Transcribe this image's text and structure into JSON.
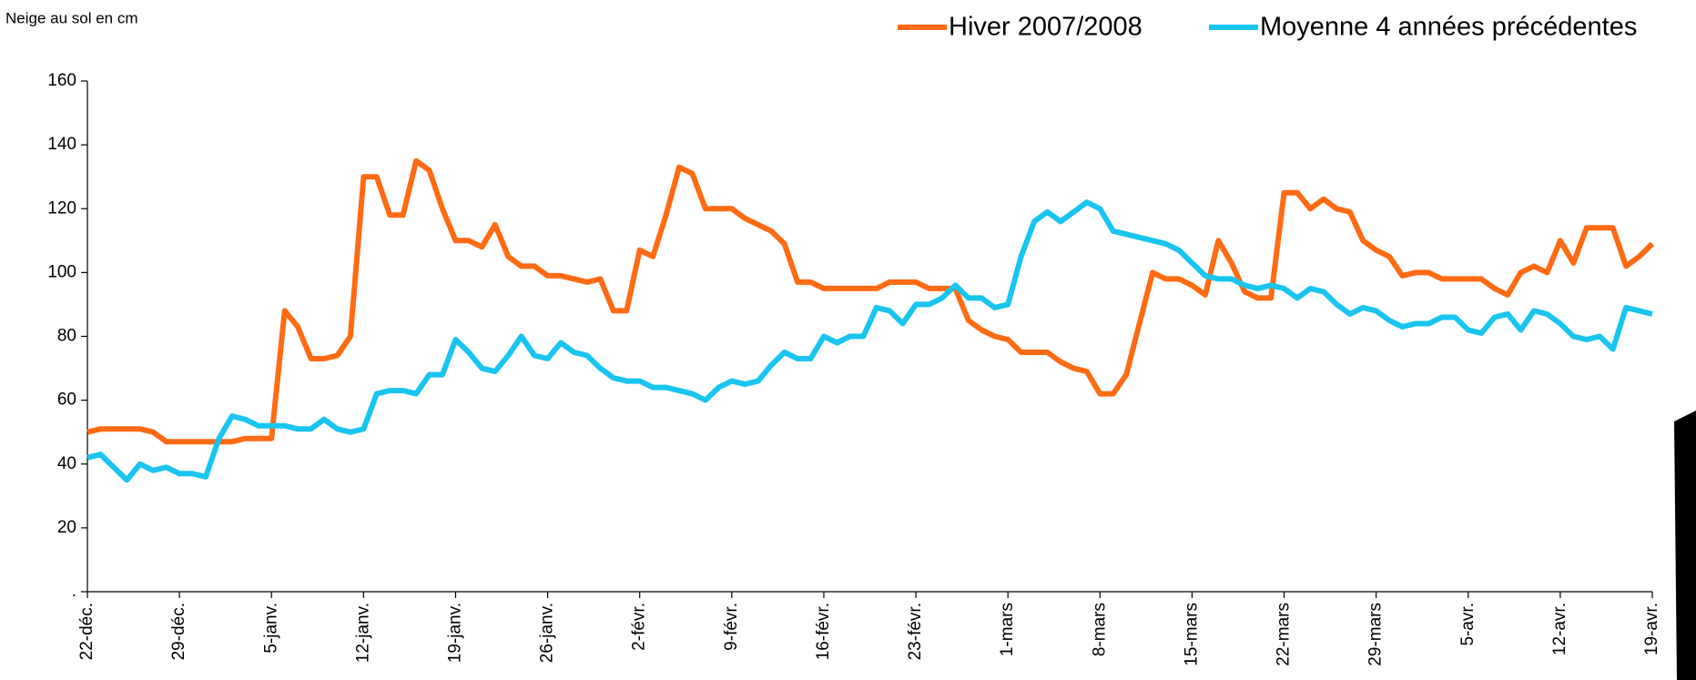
{
  "chart_data": {
    "type": "line",
    "y_axis_label": "Neige au sol en cm",
    "categories": [
      "22-déc.",
      null,
      null,
      null,
      null,
      null,
      null,
      "29-déc.",
      null,
      null,
      null,
      null,
      null,
      null,
      "5-janv.",
      null,
      null,
      null,
      null,
      null,
      null,
      "12-janv.",
      null,
      null,
      null,
      null,
      null,
      null,
      "19-janv.",
      null,
      null,
      null,
      null,
      null,
      null,
      "26-janv.",
      null,
      null,
      null,
      null,
      null,
      null,
      "2-févr.",
      null,
      null,
      null,
      null,
      null,
      null,
      "9-févr.",
      null,
      null,
      null,
      null,
      null,
      null,
      "16-févr.",
      null,
      null,
      null,
      null,
      null,
      null,
      "23-févr.",
      null,
      null,
      null,
      null,
      null,
      null,
      "1-mars",
      null,
      null,
      null,
      null,
      null,
      null,
      "8-mars",
      null,
      null,
      null,
      null,
      null,
      null,
      "15-mars",
      null,
      null,
      null,
      null,
      null,
      null,
      "22-mars",
      null,
      null,
      null,
      null,
      null,
      null,
      "29-mars",
      null,
      null,
      null,
      null,
      null,
      null,
      "5-avr.",
      null,
      null,
      null,
      null,
      null,
      null,
      "12-avr.",
      null,
      null,
      null,
      null,
      null,
      null,
      "19-avr."
    ],
    "series": [
      {
        "name": "Hiver 2007/2008",
        "color": "#ff6a13",
        "values": [
          50,
          51,
          51,
          51,
          51,
          50,
          47,
          47,
          47,
          47,
          47,
          47,
          48,
          48,
          48,
          88,
          83,
          73,
          73,
          74,
          80,
          130,
          130,
          118,
          118,
          135,
          132,
          120,
          110,
          110,
          108,
          115,
          105,
          102,
          102,
          99,
          99,
          98,
          97,
          98,
          88,
          88,
          107,
          105,
          118,
          133,
          131,
          120,
          120,
          120,
          117,
          115,
          113,
          109,
          97,
          97,
          95,
          95,
          95,
          95,
          95,
          97,
          97,
          97,
          95,
          95,
          95,
          85,
          82,
          80,
          79,
          75,
          75,
          75,
          72,
          70,
          69,
          62,
          62,
          68,
          84,
          100,
          98,
          98,
          96,
          93,
          110,
          103,
          94,
          92,
          92,
          125,
          125,
          120,
          123,
          120,
          119,
          110,
          107,
          105,
          99,
          100,
          100,
          98,
          98,
          98,
          98,
          95,
          93,
          100,
          102,
          100,
          110,
          103,
          114,
          114,
          114,
          102,
          105,
          109
        ]
      },
      {
        "name": "Moyenne 4 années précédentes",
        "color": "#18c5f0",
        "values": [
          42,
          43,
          39,
          35,
          40,
          38,
          39,
          37,
          37,
          36,
          48,
          55,
          54,
          52,
          52,
          52,
          51,
          51,
          54,
          51,
          50,
          51,
          62,
          63,
          63,
          62,
          68,
          68,
          79,
          75,
          70,
          69,
          74,
          80,
          74,
          73,
          78,
          75,
          74,
          70,
          67,
          66,
          66,
          64,
          64,
          63,
          62,
          60,
          64,
          66,
          65,
          66,
          71,
          75,
          73,
          73,
          80,
          78,
          80,
          80,
          89,
          88,
          84,
          90,
          90,
          92,
          96,
          92,
          92,
          89,
          90,
          105,
          116,
          119,
          116,
          119,
          122,
          120,
          113,
          112,
          111,
          110,
          109,
          107,
          103,
          99,
          98,
          98,
          96,
          95,
          96,
          95,
          92,
          95,
          94,
          90,
          87,
          89,
          88,
          85,
          83,
          84,
          84,
          86,
          86,
          82,
          81,
          86,
          87,
          82,
          88,
          87,
          84,
          80,
          79,
          80,
          76,
          89,
          88,
          87
        ]
      }
    ],
    "ylim": [
      0,
      160
    ],
    "yticks": [
      {
        "value": 0,
        "label": "."
      },
      20,
      40,
      60,
      80,
      100,
      120,
      140,
      160
    ],
    "legend": "top-right"
  }
}
